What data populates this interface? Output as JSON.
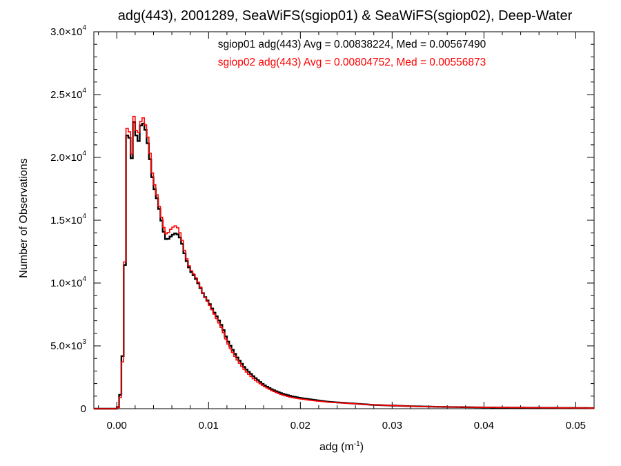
{
  "chart_data": {
    "type": "line",
    "title": "adg(443), 2001289, SeaWiFS(sgiop01) & SeaWiFS(sgiop02), Deep-Water",
    "xlabel_base": "adg (m",
    "xlabel_exp": "-1",
    "xlabel_close": ")",
    "ylabel": "Number of Observations",
    "xlim": [
      -0.0025,
      0.052
    ],
    "ylim": [
      0,
      30000
    ],
    "x_ticks": [
      {
        "value": 0.0,
        "label": "0.00"
      },
      {
        "value": 0.01,
        "label": "0.01"
      },
      {
        "value": 0.02,
        "label": "0.02"
      },
      {
        "value": 0.03,
        "label": "0.03"
      },
      {
        "value": 0.04,
        "label": "0.04"
      },
      {
        "value": 0.05,
        "label": "0.05"
      }
    ],
    "y_ticks": [
      {
        "value": 0,
        "mant": "0",
        "exp": ""
      },
      {
        "value": 5000,
        "mant": "5.0×10",
        "exp": "3"
      },
      {
        "value": 10000,
        "mant": "1.0×10",
        "exp": "4"
      },
      {
        "value": 15000,
        "mant": "1.5×10",
        "exp": "4"
      },
      {
        "value": 20000,
        "mant": "2.0×10",
        "exp": "4"
      },
      {
        "value": 25000,
        "mant": "2.5×10",
        "exp": "4"
      },
      {
        "value": 30000,
        "mant": "3.0×10",
        "exp": "4"
      }
    ],
    "annotations": [
      {
        "text": "sgiop01 adg(443) Avg = 0.00838224, Med = 0.00567490",
        "color": "#000000"
      },
      {
        "text": "sgiop02 adg(443) Avg = 0.00804752, Med = 0.00556873",
        "color": "#ff0000"
      }
    ],
    "series": [
      {
        "color": "#000000",
        "x": [
          -0.0025,
          0.0,
          0.0003,
          0.0006,
          0.0008,
          0.001,
          0.0012,
          0.0014,
          0.0016,
          0.0018,
          0.002,
          0.0022,
          0.0024,
          0.0026,
          0.0028,
          0.003,
          0.0032,
          0.0034,
          0.0036,
          0.0038,
          0.004,
          0.0043,
          0.0046,
          0.005,
          0.0053,
          0.0056,
          0.006,
          0.0065,
          0.007,
          0.0075,
          0.008,
          0.0085,
          0.009,
          0.0095,
          0.01,
          0.0105,
          0.011,
          0.0115,
          0.012,
          0.013,
          0.014,
          0.015,
          0.016,
          0.017,
          0.018,
          0.019,
          0.02,
          0.021,
          0.022,
          0.023,
          0.024,
          0.025,
          0.026,
          0.028,
          0.03,
          0.032,
          0.035,
          0.04,
          0.045,
          0.05,
          0.052
        ],
        "y": [
          0,
          0,
          300,
          3500,
          9000,
          15500,
          25500,
          21000,
          19500,
          23000,
          22500,
          21300,
          21300,
          22500,
          22800,
          22500,
          22000,
          21000,
          20000,
          18800,
          17800,
          17000,
          16000,
          14500,
          13500,
          13500,
          13800,
          14000,
          13500,
          12000,
          11000,
          10500,
          9800,
          9000,
          8500,
          7800,
          7200,
          6500,
          5500,
          4200,
          3200,
          2500,
          1900,
          1500,
          1200,
          1000,
          850,
          750,
          650,
          550,
          500,
          450,
          400,
          300,
          250,
          200,
          150,
          100,
          80,
          60,
          50
        ]
      },
      {
        "color": "#ff0000",
        "x": [
          -0.0025,
          0.0,
          0.0003,
          0.0006,
          0.0008,
          0.001,
          0.0012,
          0.0014,
          0.0016,
          0.0018,
          0.002,
          0.0022,
          0.0024,
          0.0026,
          0.0028,
          0.003,
          0.0032,
          0.0034,
          0.0036,
          0.0038,
          0.004,
          0.0043,
          0.0046,
          0.005,
          0.0053,
          0.0056,
          0.006,
          0.0065,
          0.007,
          0.0075,
          0.008,
          0.0085,
          0.009,
          0.0095,
          0.01,
          0.0105,
          0.011,
          0.0115,
          0.012,
          0.013,
          0.014,
          0.015,
          0.016,
          0.017,
          0.018,
          0.019,
          0.02,
          0.021,
          0.022,
          0.023,
          0.024,
          0.025,
          0.026,
          0.028,
          0.03,
          0.032,
          0.035,
          0.04,
          0.045,
          0.05,
          0.052
        ],
        "y": [
          0,
          0,
          200,
          3000,
          8800,
          16500,
          25800,
          21500,
          19800,
          23600,
          22700,
          21800,
          22000,
          22800,
          23300,
          22900,
          22400,
          21500,
          20500,
          19100,
          18200,
          17300,
          16200,
          14800,
          13900,
          14000,
          14400,
          14600,
          13800,
          12200,
          11100,
          10600,
          9900,
          9000,
          8400,
          7700,
          7000,
          6300,
          5300,
          4000,
          3000,
          2300,
          1800,
          1400,
          1100,
          900,
          780,
          680,
          600,
          520,
          480,
          430,
          390,
          300,
          250,
          200,
          150,
          100,
          80,
          60,
          50
        ]
      }
    ]
  }
}
